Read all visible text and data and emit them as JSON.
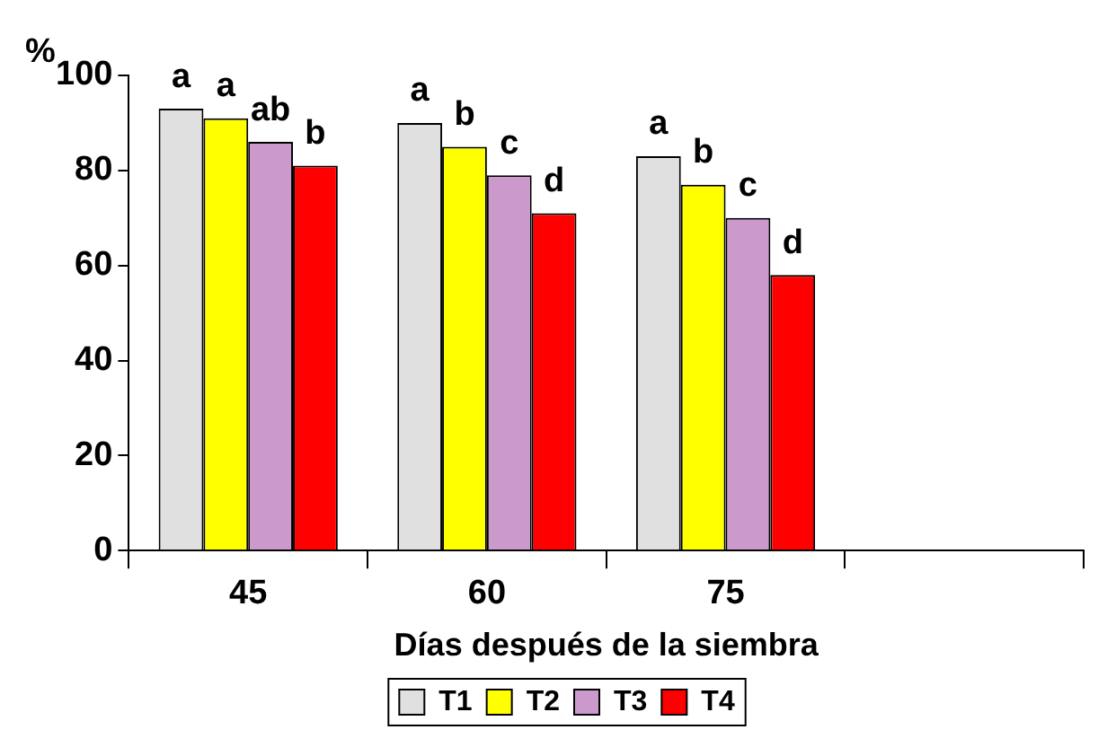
{
  "chart_data": {
    "type": "bar",
    "xlabel": "Días después de la siembra",
    "ylabel": "%",
    "categories": [
      "45",
      "60",
      "75",
      null
    ],
    "series": [
      {
        "name": "T1",
        "color": "#e0e0e0",
        "values": [
          93,
          90,
          83,
          null
        ],
        "value_labels": [
          "a",
          "a",
          "a",
          null
        ]
      },
      {
        "name": "T2",
        "color": "#ffff00",
        "values": [
          91,
          85,
          77,
          null
        ],
        "value_labels": [
          "a",
          "b",
          "b",
          null
        ]
      },
      {
        "name": "T3",
        "color": "#cc99cc",
        "values": [
          86,
          79,
          70,
          null
        ],
        "value_labels": [
          "ab",
          "c",
          "c",
          null
        ]
      },
      {
        "name": "T4",
        "color": "#ff0000",
        "values": [
          81,
          71,
          58,
          null
        ],
        "value_labels": [
          "b",
          "d",
          "d",
          null
        ]
      }
    ],
    "ylim": [
      0,
      100
    ],
    "yticks": [
      0,
      20,
      40,
      60,
      80,
      100
    ],
    "grid": false,
    "legend": "bottom"
  }
}
